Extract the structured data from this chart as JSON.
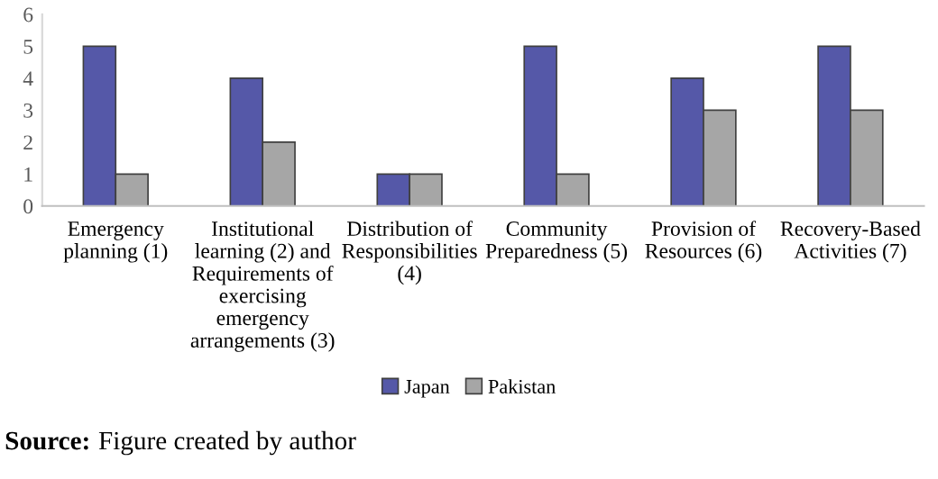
{
  "chart_data": {
    "type": "bar",
    "categories": [
      "Emergency\nplanning (1)",
      "Institutional\nlearning (2) and\nRequirements of\nexercising\nemergency\narrangements (3)",
      "Distribution of\nResponsibilities\n(4)",
      "Community\nPreparedness (5)",
      "Provision of\nResources (6)",
      "Recovery-Based\nActivities (7)"
    ],
    "series": [
      {
        "name": "Japan",
        "color": "#5558a8",
        "values": [
          5,
          4,
          1,
          5,
          4,
          5
        ]
      },
      {
        "name": "Pakistan",
        "color": "#a6a6a6",
        "values": [
          1,
          2,
          1,
          1,
          3,
          3
        ]
      }
    ],
    "ylim": [
      0,
      6
    ],
    "yticks": [
      0,
      1,
      2,
      3,
      4,
      5,
      6
    ],
    "grid": false,
    "legend": "bottom",
    "annotations": [
      "Source: Figure created by author"
    ]
  }
}
